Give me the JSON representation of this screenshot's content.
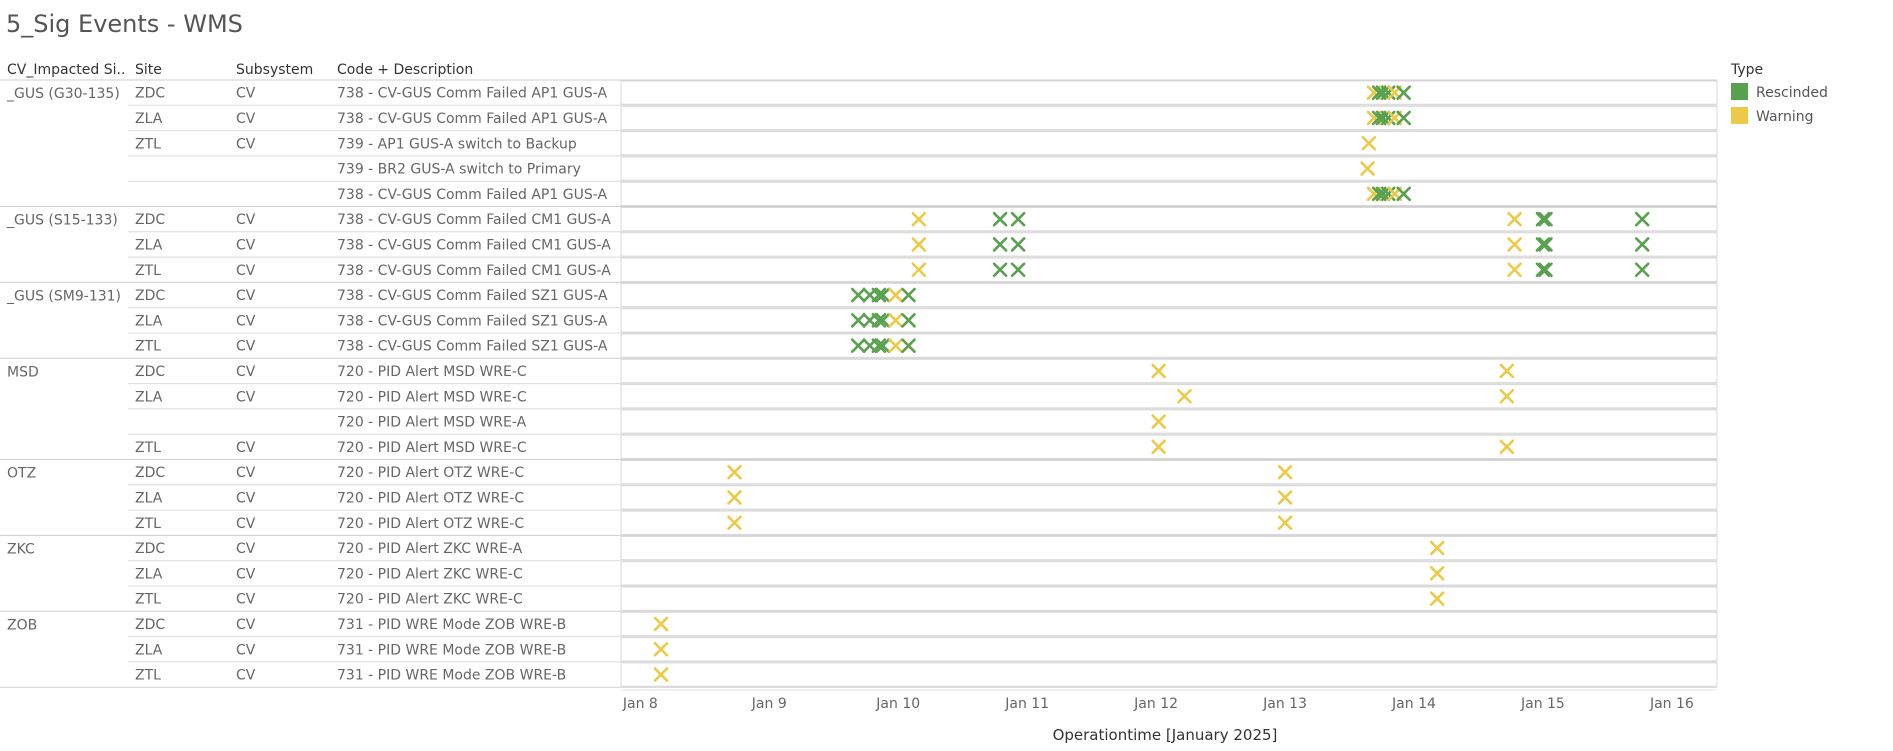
{
  "page": {
    "title": "5_Sig Events - WMS"
  },
  "table": {
    "headers": {
      "group": "CV_Impacted Si..",
      "site": "Site",
      "subsystem": "Subsystem",
      "code": "Code + Description"
    }
  },
  "legend": {
    "title": "Type",
    "items": [
      {
        "label": "Rescinded",
        "color": "#59a14f"
      },
      {
        "label": "Warning",
        "color": "#edc948"
      }
    ]
  },
  "chart_data": {
    "type": "scatter",
    "xlabel": "Operationtime [January 2025]",
    "x_ticks": [
      "Jan 8",
      "Jan 9",
      "Jan 10",
      "Jan 11",
      "Jan 12",
      "Jan 13",
      "Jan 14",
      "Jan 15",
      "Jan 16"
    ],
    "xlim": [
      7.85,
      16.35
    ],
    "groups": [
      {
        "name": "_GUS (G30-135)",
        "rows": [
          {
            "site": "ZDC",
            "subsystem": "CV",
            "code": "738 - CV-GUS Comm Failed AP1 GUS-A",
            "events": [
              {
                "x": 13.69,
                "type": "Warning"
              },
              {
                "x": 13.73,
                "type": "Rescinded"
              },
              {
                "x": 13.76,
                "type": "Rescinded"
              },
              {
                "x": 13.8,
                "type": "Rescinded"
              },
              {
                "x": 13.85,
                "type": "Warning"
              },
              {
                "x": 13.92,
                "type": "Rescinded"
              }
            ]
          },
          {
            "site": "ZLA",
            "subsystem": "CV",
            "code": "738 - CV-GUS Comm Failed AP1 GUS-A",
            "events": [
              {
                "x": 13.69,
                "type": "Warning"
              },
              {
                "x": 13.73,
                "type": "Rescinded"
              },
              {
                "x": 13.76,
                "type": "Rescinded"
              },
              {
                "x": 13.8,
                "type": "Rescinded"
              },
              {
                "x": 13.85,
                "type": "Warning"
              },
              {
                "x": 13.92,
                "type": "Rescinded"
              }
            ]
          },
          {
            "site": "ZTL",
            "subsystem": "CV",
            "code": "739 - AP1 GUS-A switch to Backup",
            "events": [
              {
                "x": 13.65,
                "type": "Warning"
              }
            ]
          },
          {
            "site": "",
            "subsystem": "",
            "code": "739 - BR2 GUS-A switch to Primary",
            "events": [
              {
                "x": 13.64,
                "type": "Warning"
              }
            ]
          },
          {
            "site": "",
            "subsystem": "",
            "code": "738 - CV-GUS Comm Failed AP1 GUS-A",
            "events": [
              {
                "x": 13.69,
                "type": "Warning"
              },
              {
                "x": 13.73,
                "type": "Rescinded"
              },
              {
                "x": 13.76,
                "type": "Rescinded"
              },
              {
                "x": 13.8,
                "type": "Rescinded"
              },
              {
                "x": 13.85,
                "type": "Warning"
              },
              {
                "x": 13.92,
                "type": "Rescinded"
              }
            ]
          }
        ]
      },
      {
        "name": "_GUS (S15-133)",
        "rows": [
          {
            "site": "ZDC",
            "subsystem": "CV",
            "code": "738 - CV-GUS Comm Failed CM1 GUS-A",
            "events": [
              {
                "x": 10.16,
                "type": "Warning"
              },
              {
                "x": 10.79,
                "type": "Rescinded"
              },
              {
                "x": 10.93,
                "type": "Rescinded"
              },
              {
                "x": 14.78,
                "type": "Warning"
              },
              {
                "x": 15.0,
                "type": "Rescinded"
              },
              {
                "x": 15.02,
                "type": "Rescinded"
              },
              {
                "x": 15.77,
                "type": "Rescinded"
              }
            ]
          },
          {
            "site": "ZLA",
            "subsystem": "CV",
            "code": "738 - CV-GUS Comm Failed CM1 GUS-A",
            "events": [
              {
                "x": 10.16,
                "type": "Warning"
              },
              {
                "x": 10.79,
                "type": "Rescinded"
              },
              {
                "x": 10.93,
                "type": "Rescinded"
              },
              {
                "x": 14.78,
                "type": "Warning"
              },
              {
                "x": 15.0,
                "type": "Rescinded"
              },
              {
                "x": 15.02,
                "type": "Rescinded"
              },
              {
                "x": 15.77,
                "type": "Rescinded"
              }
            ]
          },
          {
            "site": "ZTL",
            "subsystem": "CV",
            "code": "738 - CV-GUS Comm Failed CM1 GUS-A",
            "events": [
              {
                "x": 10.16,
                "type": "Warning"
              },
              {
                "x": 10.79,
                "type": "Rescinded"
              },
              {
                "x": 10.93,
                "type": "Rescinded"
              },
              {
                "x": 14.78,
                "type": "Warning"
              },
              {
                "x": 15.0,
                "type": "Rescinded"
              },
              {
                "x": 15.02,
                "type": "Rescinded"
              },
              {
                "x": 15.77,
                "type": "Rescinded"
              }
            ]
          }
        ]
      },
      {
        "name": "_GUS (SM9-131)",
        "rows": [
          {
            "site": "ZDC",
            "subsystem": "CV",
            "code": "738 - CV-GUS Comm Failed SZ1 GUS-A",
            "events": [
              {
                "x": 9.69,
                "type": "Rescinded"
              },
              {
                "x": 9.78,
                "type": "Rescinded"
              },
              {
                "x": 9.85,
                "type": "Rescinded"
              },
              {
                "x": 9.88,
                "type": "Rescinded"
              },
              {
                "x": 9.98,
                "type": "Warning"
              },
              {
                "x": 10.08,
                "type": "Rescinded"
              }
            ]
          },
          {
            "site": "ZLA",
            "subsystem": "CV",
            "code": "738 - CV-GUS Comm Failed SZ1 GUS-A",
            "events": [
              {
                "x": 9.69,
                "type": "Rescinded"
              },
              {
                "x": 9.78,
                "type": "Rescinded"
              },
              {
                "x": 9.85,
                "type": "Rescinded"
              },
              {
                "x": 9.88,
                "type": "Rescinded"
              },
              {
                "x": 9.98,
                "type": "Warning"
              },
              {
                "x": 10.08,
                "type": "Rescinded"
              }
            ]
          },
          {
            "site": "ZTL",
            "subsystem": "CV",
            "code": "738 - CV-GUS Comm Failed SZ1 GUS-A",
            "events": [
              {
                "x": 9.69,
                "type": "Rescinded"
              },
              {
                "x": 9.78,
                "type": "Rescinded"
              },
              {
                "x": 9.85,
                "type": "Rescinded"
              },
              {
                "x": 9.88,
                "type": "Rescinded"
              },
              {
                "x": 9.98,
                "type": "Warning"
              },
              {
                "x": 10.08,
                "type": "Rescinded"
              }
            ]
          }
        ]
      },
      {
        "name": "MSD",
        "rows": [
          {
            "site": "ZDC",
            "subsystem": "CV",
            "code": "720 - PID Alert MSD WRE-C",
            "events": [
              {
                "x": 12.02,
                "type": "Warning"
              },
              {
                "x": 14.72,
                "type": "Warning"
              }
            ]
          },
          {
            "site": "ZLA",
            "subsystem": "CV",
            "code": "720 - PID Alert MSD WRE-C",
            "events": [
              {
                "x": 12.22,
                "type": "Warning"
              },
              {
                "x": 14.72,
                "type": "Warning"
              }
            ]
          },
          {
            "site": "",
            "subsystem": "",
            "code": "720 - PID Alert MSD WRE-A",
            "events": [
              {
                "x": 12.02,
                "type": "Warning"
              }
            ]
          },
          {
            "site": "ZTL",
            "subsystem": "CV",
            "code": "720 - PID Alert MSD WRE-C",
            "events": [
              {
                "x": 12.02,
                "type": "Warning"
              },
              {
                "x": 14.72,
                "type": "Warning"
              }
            ]
          }
        ]
      },
      {
        "name": "OTZ",
        "rows": [
          {
            "site": "ZDC",
            "subsystem": "CV",
            "code": "720 - PID Alert OTZ WRE-C",
            "events": [
              {
                "x": 8.73,
                "type": "Warning"
              },
              {
                "x": 13.0,
                "type": "Warning"
              }
            ]
          },
          {
            "site": "ZLA",
            "subsystem": "CV",
            "code": "720 - PID Alert OTZ WRE-C",
            "events": [
              {
                "x": 8.73,
                "type": "Warning"
              },
              {
                "x": 13.0,
                "type": "Warning"
              }
            ]
          },
          {
            "site": "ZTL",
            "subsystem": "CV",
            "code": "720 - PID Alert OTZ WRE-C",
            "events": [
              {
                "x": 8.73,
                "type": "Warning"
              },
              {
                "x": 13.0,
                "type": "Warning"
              }
            ]
          }
        ]
      },
      {
        "name": "ZKC",
        "rows": [
          {
            "site": "ZDC",
            "subsystem": "CV",
            "code": "720 - PID Alert ZKC WRE-A",
            "events": [
              {
                "x": 14.18,
                "type": "Warning"
              }
            ]
          },
          {
            "site": "ZLA",
            "subsystem": "CV",
            "code": "720 - PID Alert ZKC WRE-C",
            "events": [
              {
                "x": 14.18,
                "type": "Warning"
              }
            ]
          },
          {
            "site": "ZTL",
            "subsystem": "CV",
            "code": "720 - PID Alert ZKC WRE-C",
            "events": [
              {
                "x": 14.18,
                "type": "Warning"
              }
            ]
          }
        ]
      },
      {
        "name": "ZOB",
        "rows": [
          {
            "site": "ZDC",
            "subsystem": "CV",
            "code": "731 - PID WRE Mode ZOB WRE-B",
            "events": [
              {
                "x": 8.16,
                "type": "Warning"
              }
            ]
          },
          {
            "site": "ZLA",
            "subsystem": "CV",
            "code": "731 - PID WRE Mode ZOB WRE-B",
            "events": [
              {
                "x": 8.16,
                "type": "Warning"
              }
            ]
          },
          {
            "site": "ZTL",
            "subsystem": "CV",
            "code": "731 - PID WRE Mode ZOB WRE-B",
            "events": [
              {
                "x": 8.16,
                "type": "Warning"
              }
            ]
          }
        ]
      }
    ]
  }
}
